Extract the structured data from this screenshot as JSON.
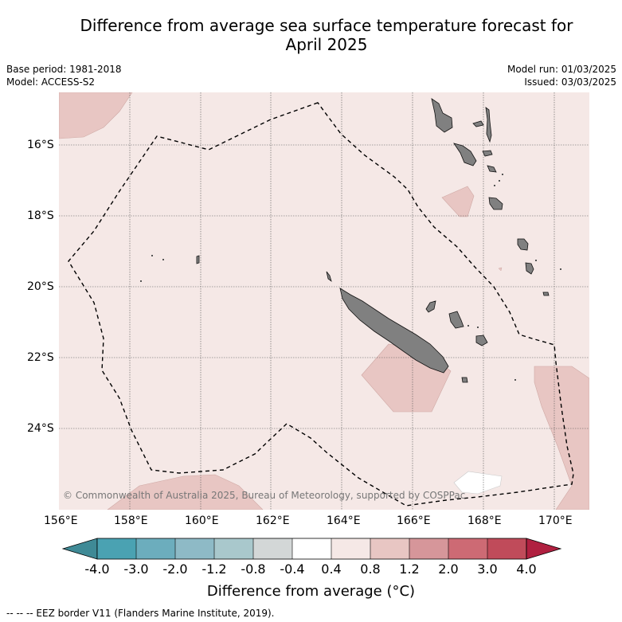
{
  "title": {
    "line1": "Difference from average sea surface temperature forecast for",
    "line2": "April 2025"
  },
  "meta": {
    "base_period": "Base period: 1981-2018",
    "model": "Model: ACCESS-S2",
    "model_run": "Model run: 01/03/2025",
    "issued": "Issued: 03/03/2025"
  },
  "map": {
    "latitude_labels": [
      "16°S",
      "18°S",
      "20°S",
      "22°S",
      "24°S"
    ],
    "longitude_labels": [
      "156°E",
      "158°E",
      "160°E",
      "162°E",
      "164°E",
      "166°E",
      "168°E",
      "170°E"
    ],
    "copyright": "© Commonwealth of Australia 2025, Bureau of Meteorology, supported by COSPPac",
    "colors": {
      "ocean_base": "#f5e8e6",
      "warm_0_8": "#e8c6c3",
      "near_zero": "#ffffff",
      "land": "#808080",
      "grid": "#444444"
    }
  },
  "colorbar": {
    "title": "Difference from average (°C)",
    "tick_labels": [
      "-4.0",
      "-3.0",
      "-2.0",
      "-1.2",
      "-0.8",
      "-0.4",
      "0.4",
      "0.8",
      "1.2",
      "2.0",
      "3.0",
      "4.0"
    ],
    "colors": [
      "#3f8a96",
      "#4aa2b2",
      "#6cadbd",
      "#8ebac6",
      "#a9c8cc",
      "#d3d7d7",
      "#ffffff",
      "#f5e8e6",
      "#e8c6c3",
      "#d6969a",
      "#cd6a74",
      "#c04b5a",
      "#b02040"
    ]
  },
  "footer": {
    "legend": "--  --  -- EEZ border V11 (Flanders Marine Institute, 2019)."
  }
}
